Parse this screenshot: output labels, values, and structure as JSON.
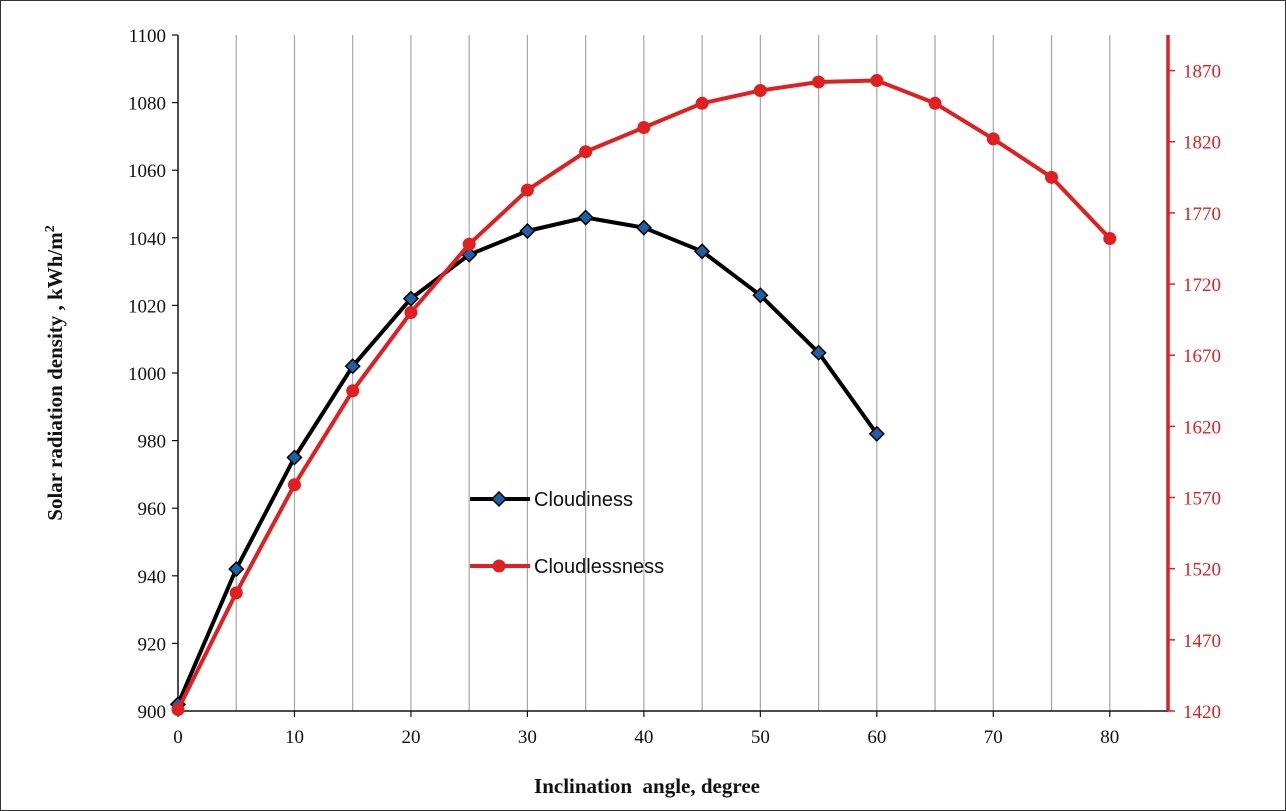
{
  "chart_data": {
    "type": "line",
    "title": "",
    "xlabel": "Inclination  angle, degree",
    "ylabel": "Solar radiation density , kWh/m",
    "ylabel_superscript": "2",
    "xlim": [
      0,
      85
    ],
    "x_ticks": [
      0,
      10,
      20,
      30,
      40,
      50,
      60,
      70,
      80
    ],
    "ylim_left": [
      900,
      1100
    ],
    "y_ticks_left": [
      900,
      920,
      940,
      960,
      980,
      1000,
      1020,
      1040,
      1060,
      1080,
      1100
    ],
    "ylim_right": [
      1420,
      1895
    ],
    "y_ticks_right": [
      1420,
      1470,
      1520,
      1570,
      1620,
      1670,
      1720,
      1770,
      1820,
      1870
    ],
    "vertical_grid_step": 5,
    "grid": true,
    "legend_position": "center",
    "series": [
      {
        "name": "Cloudiness",
        "axis": "left",
        "color": "#000000",
        "marker": "diamond",
        "marker_color": "#1f5fa8",
        "x": [
          0,
          5,
          10,
          15,
          20,
          25,
          30,
          35,
          40,
          45,
          50,
          55,
          60
        ],
        "values": [
          902,
          942,
          975,
          1002,
          1022,
          1035,
          1042,
          1046,
          1043,
          1036,
          1023,
          1006,
          982
        ]
      },
      {
        "name": "Cloudlessness",
        "axis": "right",
        "color": "#e02020",
        "marker": "circle",
        "marker_color": "#e02020",
        "x": [
          0,
          5,
          10,
          15,
          20,
          25,
          30,
          35,
          40,
          45,
          50,
          55,
          60,
          65,
          70,
          75,
          80
        ],
        "values": [
          1421,
          1503,
          1579,
          1645,
          1700,
          1748,
          1786,
          1813,
          1830,
          1847,
          1856,
          1862,
          1863,
          1847,
          1822,
          1795,
          1752
        ]
      }
    ]
  }
}
